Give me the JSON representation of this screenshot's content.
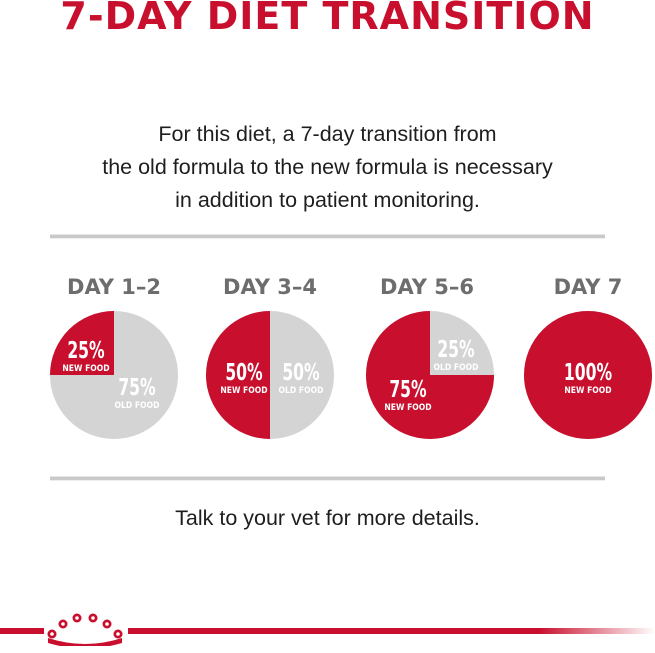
{
  "title": "7-DAY DIET TRANSITION",
  "intro": {
    "lines": [
      "For this diet, a 7-day transition from",
      "the old formula to the new formula is necessary",
      "in addition to patient monitoring."
    ]
  },
  "colors": {
    "red": "#c8102e",
    "gray": "#d4d4d4",
    "label_gray": "#6d6d6d"
  },
  "chart_data": {
    "type": "pie",
    "stages": [
      {
        "day": "DAY 1–2",
        "new": {
          "pct": "25%",
          "label": "NEW FOOD",
          "value": 25
        },
        "old": {
          "pct": "75%",
          "label": "OLD FOOD",
          "value": 75
        }
      },
      {
        "day": "DAY 3–4",
        "new": {
          "pct": "50%",
          "label": "NEW FOOD",
          "value": 50
        },
        "old": {
          "pct": "50%",
          "label": "OLD FOOD",
          "value": 50
        }
      },
      {
        "day": "DAY 5–6",
        "new": {
          "pct": "75%",
          "label": "NEW FOOD",
          "value": 75
        },
        "old": {
          "pct": "25%",
          "label": "OLD FOOD",
          "value": 25
        }
      },
      {
        "day": "DAY 7",
        "new": {
          "pct": "100%",
          "label": "NEW FOOD",
          "value": 100
        },
        "old": null
      }
    ]
  },
  "footer": {
    "text": "Talk to your vet for more details.",
    "logo_icon": "crown-icon"
  }
}
